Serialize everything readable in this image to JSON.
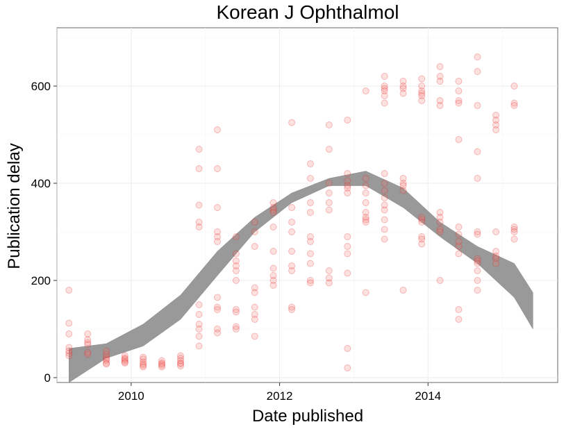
{
  "chart_data": {
    "type": "scatter",
    "title": "Korean J Ophthalmol",
    "xlabel": "Date published",
    "ylabel": "Publication delay",
    "x_axis_kind": "date",
    "xlim": [
      "2009-01-01",
      "2015-10-01"
    ],
    "ylim": [
      -10,
      720
    ],
    "x_ticks": [
      "2010-01-01",
      "2012-01-01",
      "2014-01-01"
    ],
    "x_tick_labels": [
      "2010",
      "2012",
      "2014"
    ],
    "y_ticks": [
      0,
      200,
      400,
      600
    ],
    "y_tick_labels": [
      "0",
      "200",
      "400",
      "600"
    ],
    "grid": true,
    "legend": "none",
    "colors": {
      "points": "#e41a1c",
      "band": "#999999",
      "panel_border": "#7f7f7f"
    },
    "series": [
      {
        "kind": "points",
        "points": [
          [
            "2009-03-01",
            180
          ],
          [
            "2009-03-01",
            112
          ],
          [
            "2009-03-01",
            90
          ],
          [
            "2009-03-01",
            62
          ],
          [
            "2009-03-01",
            55
          ],
          [
            "2009-03-01",
            50
          ],
          [
            "2009-03-01",
            45
          ],
          [
            "2009-06-01",
            90
          ],
          [
            "2009-06-01",
            78
          ],
          [
            "2009-06-01",
            72
          ],
          [
            "2009-06-01",
            68
          ],
          [
            "2009-06-01",
            52
          ],
          [
            "2009-06-01",
            48
          ],
          [
            "2009-09-01",
            55
          ],
          [
            "2009-09-01",
            48
          ],
          [
            "2009-09-01",
            42
          ],
          [
            "2009-09-01",
            38
          ],
          [
            "2009-09-01",
            35
          ],
          [
            "2009-09-01",
            30
          ],
          [
            "2009-09-01",
            28
          ],
          [
            "2009-12-01",
            45
          ],
          [
            "2009-12-01",
            40
          ],
          [
            "2009-12-01",
            38
          ],
          [
            "2009-12-01",
            35
          ],
          [
            "2009-12-01",
            32
          ],
          [
            "2009-12-01",
            30
          ],
          [
            "2010-03-01",
            42
          ],
          [
            "2010-03-01",
            38
          ],
          [
            "2010-03-01",
            32
          ],
          [
            "2010-03-01",
            28
          ],
          [
            "2010-03-01",
            25
          ],
          [
            "2010-03-01",
            22
          ],
          [
            "2010-06-01",
            35
          ],
          [
            "2010-06-01",
            30
          ],
          [
            "2010-06-01",
            28
          ],
          [
            "2010-06-01",
            25
          ],
          [
            "2010-06-01",
            22
          ],
          [
            "2010-09-01",
            45
          ],
          [
            "2010-09-01",
            40
          ],
          [
            "2010-09-01",
            35
          ],
          [
            "2010-09-01",
            30
          ],
          [
            "2010-09-01",
            28
          ],
          [
            "2010-09-01",
            24
          ],
          [
            "2010-12-01",
            470
          ],
          [
            "2010-12-01",
            430
          ],
          [
            "2010-12-01",
            355
          ],
          [
            "2010-12-01",
            320
          ],
          [
            "2010-12-01",
            310
          ],
          [
            "2010-12-01",
            150
          ],
          [
            "2010-12-01",
            130
          ],
          [
            "2010-12-01",
            110
          ],
          [
            "2010-12-01",
            100
          ],
          [
            "2010-12-01",
            85
          ],
          [
            "2010-12-01",
            65
          ],
          [
            "2011-03-01",
            510
          ],
          [
            "2011-03-01",
            430
          ],
          [
            "2011-03-01",
            350
          ],
          [
            "2011-03-01",
            300
          ],
          [
            "2011-03-01",
            290
          ],
          [
            "2011-03-01",
            280
          ],
          [
            "2011-03-01",
            165
          ],
          [
            "2011-03-01",
            145
          ],
          [
            "2011-03-01",
            140
          ],
          [
            "2011-03-01",
            100
          ],
          [
            "2011-03-01",
            92
          ],
          [
            "2011-06-01",
            290
          ],
          [
            "2011-06-01",
            255
          ],
          [
            "2011-06-01",
            240
          ],
          [
            "2011-06-01",
            230
          ],
          [
            "2011-06-01",
            220
          ],
          [
            "2011-06-01",
            200
          ],
          [
            "2011-06-01",
            140
          ],
          [
            "2011-06-01",
            135
          ],
          [
            "2011-06-01",
            105
          ],
          [
            "2011-06-01",
            100
          ],
          [
            "2011-09-01",
            320
          ],
          [
            "2011-09-01",
            300
          ],
          [
            "2011-09-01",
            270
          ],
          [
            "2011-09-01",
            185
          ],
          [
            "2011-09-01",
            175
          ],
          [
            "2011-09-01",
            145
          ],
          [
            "2011-09-01",
            130
          ],
          [
            "2011-09-01",
            120
          ],
          [
            "2011-09-01",
            85
          ],
          [
            "2011-12-01",
            360
          ],
          [
            "2011-12-01",
            350
          ],
          [
            "2011-12-01",
            345
          ],
          [
            "2011-12-01",
            340
          ],
          [
            "2011-12-01",
            310
          ],
          [
            "2011-12-01",
            260
          ],
          [
            "2011-12-01",
            225
          ],
          [
            "2011-12-01",
            210
          ],
          [
            "2011-12-01",
            200
          ],
          [
            "2011-12-01",
            190
          ],
          [
            "2012-03-01",
            525
          ],
          [
            "2012-03-01",
            350
          ],
          [
            "2012-03-01",
            320
          ],
          [
            "2012-03-01",
            300
          ],
          [
            "2012-03-01",
            260
          ],
          [
            "2012-03-01",
            230
          ],
          [
            "2012-03-01",
            220
          ],
          [
            "2012-03-01",
            145
          ],
          [
            "2012-03-01",
            140
          ],
          [
            "2012-06-01",
            440
          ],
          [
            "2012-06-01",
            410
          ],
          [
            "2012-06-01",
            360
          ],
          [
            "2012-06-01",
            340
          ],
          [
            "2012-06-01",
            290
          ],
          [
            "2012-06-01",
            280
          ],
          [
            "2012-06-01",
            255
          ],
          [
            "2012-06-01",
            235
          ],
          [
            "2012-06-01",
            200
          ],
          [
            "2012-06-01",
            195
          ],
          [
            "2012-09-01",
            520
          ],
          [
            "2012-09-01",
            470
          ],
          [
            "2012-09-01",
            400
          ],
          [
            "2012-09-01",
            380
          ],
          [
            "2012-09-01",
            360
          ],
          [
            "2012-09-01",
            345
          ],
          [
            "2012-09-01",
            220
          ],
          [
            "2012-09-01",
            205
          ],
          [
            "2012-09-01",
            195
          ],
          [
            "2012-12-01",
            530
          ],
          [
            "2012-12-01",
            420
          ],
          [
            "2012-12-01",
            405
          ],
          [
            "2012-12-01",
            395
          ],
          [
            "2012-12-01",
            390
          ],
          [
            "2012-12-01",
            380
          ],
          [
            "2012-12-01",
            290
          ],
          [
            "2012-12-01",
            270
          ],
          [
            "2012-12-01",
            255
          ],
          [
            "2012-12-01",
            215
          ],
          [
            "2012-12-01",
            60
          ],
          [
            "2012-12-01",
            20
          ],
          [
            "2013-03-01",
            590
          ],
          [
            "2013-03-01",
            410
          ],
          [
            "2013-03-01",
            395
          ],
          [
            "2013-03-01",
            380
          ],
          [
            "2013-03-01",
            360
          ],
          [
            "2013-03-01",
            340
          ],
          [
            "2013-03-01",
            330
          ],
          [
            "2013-03-01",
            325
          ],
          [
            "2013-03-01",
            320
          ],
          [
            "2013-03-01",
            175
          ],
          [
            "2013-06-01",
            620
          ],
          [
            "2013-06-01",
            600
          ],
          [
            "2013-06-01",
            595
          ],
          [
            "2013-06-01",
            590
          ],
          [
            "2013-06-01",
            580
          ],
          [
            "2013-06-01",
            565
          ],
          [
            "2013-06-01",
            420
          ],
          [
            "2013-06-01",
            400
          ],
          [
            "2013-06-01",
            385
          ],
          [
            "2013-06-01",
            370
          ],
          [
            "2013-06-01",
            355
          ],
          [
            "2013-06-01",
            345
          ],
          [
            "2013-06-01",
            325
          ],
          [
            "2013-06-01",
            305
          ],
          [
            "2013-06-01",
            285
          ],
          [
            "2013-09-01",
            610
          ],
          [
            "2013-09-01",
            600
          ],
          [
            "2013-09-01",
            595
          ],
          [
            "2013-09-01",
            585
          ],
          [
            "2013-09-01",
            410
          ],
          [
            "2013-09-01",
            400
          ],
          [
            "2013-09-01",
            395
          ],
          [
            "2013-09-01",
            385
          ],
          [
            "2013-09-01",
            180
          ],
          [
            "2013-12-01",
            615
          ],
          [
            "2013-12-01",
            600
          ],
          [
            "2013-12-01",
            590
          ],
          [
            "2013-12-01",
            585
          ],
          [
            "2013-12-01",
            580
          ],
          [
            "2013-12-01",
            570
          ],
          [
            "2013-12-01",
            330
          ],
          [
            "2013-12-01",
            325
          ],
          [
            "2013-12-01",
            320
          ],
          [
            "2013-12-01",
            290
          ],
          [
            "2013-12-01",
            285
          ],
          [
            "2013-12-01",
            275
          ],
          [
            "2014-03-01",
            640
          ],
          [
            "2014-03-01",
            620
          ],
          [
            "2014-03-01",
            610
          ],
          [
            "2014-03-01",
            570
          ],
          [
            "2014-03-01",
            560
          ],
          [
            "2014-03-01",
            340
          ],
          [
            "2014-03-01",
            330
          ],
          [
            "2014-03-01",
            320
          ],
          [
            "2014-03-01",
            305
          ],
          [
            "2014-03-01",
            300
          ],
          [
            "2014-03-01",
            200
          ],
          [
            "2014-06-01",
            610
          ],
          [
            "2014-06-01",
            590
          ],
          [
            "2014-06-01",
            570
          ],
          [
            "2014-06-01",
            565
          ],
          [
            "2014-06-01",
            490
          ],
          [
            "2014-06-01",
            310
          ],
          [
            "2014-06-01",
            295
          ],
          [
            "2014-06-01",
            280
          ],
          [
            "2014-06-01",
            270
          ],
          [
            "2014-06-01",
            255
          ],
          [
            "2014-06-01",
            140
          ],
          [
            "2014-06-01",
            120
          ],
          [
            "2014-09-01",
            660
          ],
          [
            "2014-09-01",
            630
          ],
          [
            "2014-09-01",
            560
          ],
          [
            "2014-09-01",
            465
          ],
          [
            "2014-09-01",
            410
          ],
          [
            "2014-09-01",
            300
          ],
          [
            "2014-09-01",
            295
          ],
          [
            "2014-09-01",
            245
          ],
          [
            "2014-09-01",
            240
          ],
          [
            "2014-09-01",
            235
          ],
          [
            "2014-09-01",
            220
          ],
          [
            "2014-09-01",
            200
          ],
          [
            "2014-09-01",
            180
          ],
          [
            "2014-12-01",
            540
          ],
          [
            "2014-12-01",
            530
          ],
          [
            "2014-12-01",
            520
          ],
          [
            "2014-12-01",
            510
          ],
          [
            "2014-12-01",
            300
          ],
          [
            "2014-12-01",
            260
          ],
          [
            "2014-12-01",
            250
          ],
          [
            "2014-12-01",
            245
          ],
          [
            "2014-12-01",
            235
          ],
          [
            "2015-03-01",
            600
          ],
          [
            "2015-03-01",
            565
          ],
          [
            "2015-03-01",
            560
          ],
          [
            "2015-03-01",
            310
          ],
          [
            "2015-03-01",
            305
          ],
          [
            "2015-03-01",
            300
          ],
          [
            "2015-03-01",
            285
          ]
        ]
      },
      {
        "kind": "smooth_band",
        "x": [
          "2009-03-01",
          "2009-09-01",
          "2010-03-01",
          "2010-09-01",
          "2011-03-01",
          "2011-09-01",
          "2012-03-01",
          "2012-09-01",
          "2013-03-01",
          "2013-09-01",
          "2014-03-01",
          "2014-09-01",
          "2015-03-01",
          "2015-06-01"
        ],
        "lower": [
          -10,
          40,
          65,
          120,
          210,
          300,
          360,
          395,
          395,
          350,
          290,
          235,
          165,
          100
        ],
        "upper": [
          60,
          70,
          110,
          170,
          260,
          330,
          380,
          410,
          425,
          390,
          320,
          270,
          235,
          175
        ]
      }
    ]
  }
}
